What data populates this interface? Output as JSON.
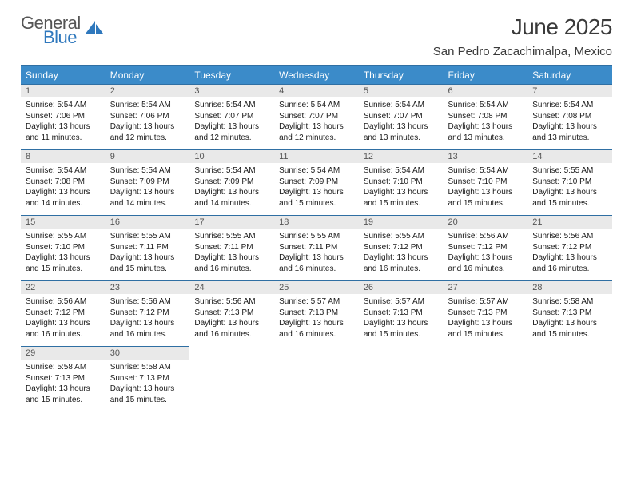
{
  "brand": {
    "part1": "General",
    "part2": "Blue"
  },
  "title": "June 2025",
  "location": "San Pedro Zacachimalpa, Mexico",
  "colors": {
    "header_bg": "#3b8bc9",
    "header_border": "#2f6fa3",
    "daynum_bg": "#e9e9e9",
    "brand_blue": "#2f78bd",
    "text": "#1a1a1a"
  },
  "weekdays": [
    "Sunday",
    "Monday",
    "Tuesday",
    "Wednesday",
    "Thursday",
    "Friday",
    "Saturday"
  ],
  "weeks": [
    [
      {
        "n": "1",
        "sr": "Sunrise: 5:54 AM",
        "ss": "Sunset: 7:06 PM",
        "d1": "Daylight: 13 hours",
        "d2": "and 11 minutes."
      },
      {
        "n": "2",
        "sr": "Sunrise: 5:54 AM",
        "ss": "Sunset: 7:06 PM",
        "d1": "Daylight: 13 hours",
        "d2": "and 12 minutes."
      },
      {
        "n": "3",
        "sr": "Sunrise: 5:54 AM",
        "ss": "Sunset: 7:07 PM",
        "d1": "Daylight: 13 hours",
        "d2": "and 12 minutes."
      },
      {
        "n": "4",
        "sr": "Sunrise: 5:54 AM",
        "ss": "Sunset: 7:07 PM",
        "d1": "Daylight: 13 hours",
        "d2": "and 12 minutes."
      },
      {
        "n": "5",
        "sr": "Sunrise: 5:54 AM",
        "ss": "Sunset: 7:07 PM",
        "d1": "Daylight: 13 hours",
        "d2": "and 13 minutes."
      },
      {
        "n": "6",
        "sr": "Sunrise: 5:54 AM",
        "ss": "Sunset: 7:08 PM",
        "d1": "Daylight: 13 hours",
        "d2": "and 13 minutes."
      },
      {
        "n": "7",
        "sr": "Sunrise: 5:54 AM",
        "ss": "Sunset: 7:08 PM",
        "d1": "Daylight: 13 hours",
        "d2": "and 13 minutes."
      }
    ],
    [
      {
        "n": "8",
        "sr": "Sunrise: 5:54 AM",
        "ss": "Sunset: 7:08 PM",
        "d1": "Daylight: 13 hours",
        "d2": "and 14 minutes."
      },
      {
        "n": "9",
        "sr": "Sunrise: 5:54 AM",
        "ss": "Sunset: 7:09 PM",
        "d1": "Daylight: 13 hours",
        "d2": "and 14 minutes."
      },
      {
        "n": "10",
        "sr": "Sunrise: 5:54 AM",
        "ss": "Sunset: 7:09 PM",
        "d1": "Daylight: 13 hours",
        "d2": "and 14 minutes."
      },
      {
        "n": "11",
        "sr": "Sunrise: 5:54 AM",
        "ss": "Sunset: 7:09 PM",
        "d1": "Daylight: 13 hours",
        "d2": "and 15 minutes."
      },
      {
        "n": "12",
        "sr": "Sunrise: 5:54 AM",
        "ss": "Sunset: 7:10 PM",
        "d1": "Daylight: 13 hours",
        "d2": "and 15 minutes."
      },
      {
        "n": "13",
        "sr": "Sunrise: 5:54 AM",
        "ss": "Sunset: 7:10 PM",
        "d1": "Daylight: 13 hours",
        "d2": "and 15 minutes."
      },
      {
        "n": "14",
        "sr": "Sunrise: 5:55 AM",
        "ss": "Sunset: 7:10 PM",
        "d1": "Daylight: 13 hours",
        "d2": "and 15 minutes."
      }
    ],
    [
      {
        "n": "15",
        "sr": "Sunrise: 5:55 AM",
        "ss": "Sunset: 7:10 PM",
        "d1": "Daylight: 13 hours",
        "d2": "and 15 minutes."
      },
      {
        "n": "16",
        "sr": "Sunrise: 5:55 AM",
        "ss": "Sunset: 7:11 PM",
        "d1": "Daylight: 13 hours",
        "d2": "and 15 minutes."
      },
      {
        "n": "17",
        "sr": "Sunrise: 5:55 AM",
        "ss": "Sunset: 7:11 PM",
        "d1": "Daylight: 13 hours",
        "d2": "and 16 minutes."
      },
      {
        "n": "18",
        "sr": "Sunrise: 5:55 AM",
        "ss": "Sunset: 7:11 PM",
        "d1": "Daylight: 13 hours",
        "d2": "and 16 minutes."
      },
      {
        "n": "19",
        "sr": "Sunrise: 5:55 AM",
        "ss": "Sunset: 7:12 PM",
        "d1": "Daylight: 13 hours",
        "d2": "and 16 minutes."
      },
      {
        "n": "20",
        "sr": "Sunrise: 5:56 AM",
        "ss": "Sunset: 7:12 PM",
        "d1": "Daylight: 13 hours",
        "d2": "and 16 minutes."
      },
      {
        "n": "21",
        "sr": "Sunrise: 5:56 AM",
        "ss": "Sunset: 7:12 PM",
        "d1": "Daylight: 13 hours",
        "d2": "and 16 minutes."
      }
    ],
    [
      {
        "n": "22",
        "sr": "Sunrise: 5:56 AM",
        "ss": "Sunset: 7:12 PM",
        "d1": "Daylight: 13 hours",
        "d2": "and 16 minutes."
      },
      {
        "n": "23",
        "sr": "Sunrise: 5:56 AM",
        "ss": "Sunset: 7:12 PM",
        "d1": "Daylight: 13 hours",
        "d2": "and 16 minutes."
      },
      {
        "n": "24",
        "sr": "Sunrise: 5:56 AM",
        "ss": "Sunset: 7:13 PM",
        "d1": "Daylight: 13 hours",
        "d2": "and 16 minutes."
      },
      {
        "n": "25",
        "sr": "Sunrise: 5:57 AM",
        "ss": "Sunset: 7:13 PM",
        "d1": "Daylight: 13 hours",
        "d2": "and 16 minutes."
      },
      {
        "n": "26",
        "sr": "Sunrise: 5:57 AM",
        "ss": "Sunset: 7:13 PM",
        "d1": "Daylight: 13 hours",
        "d2": "and 15 minutes."
      },
      {
        "n": "27",
        "sr": "Sunrise: 5:57 AM",
        "ss": "Sunset: 7:13 PM",
        "d1": "Daylight: 13 hours",
        "d2": "and 15 minutes."
      },
      {
        "n": "28",
        "sr": "Sunrise: 5:58 AM",
        "ss": "Sunset: 7:13 PM",
        "d1": "Daylight: 13 hours",
        "d2": "and 15 minutes."
      }
    ],
    [
      {
        "n": "29",
        "sr": "Sunrise: 5:58 AM",
        "ss": "Sunset: 7:13 PM",
        "d1": "Daylight: 13 hours",
        "d2": "and 15 minutes."
      },
      {
        "n": "30",
        "sr": "Sunrise: 5:58 AM",
        "ss": "Sunset: 7:13 PM",
        "d1": "Daylight: 13 hours",
        "d2": "and 15 minutes."
      },
      null,
      null,
      null,
      null,
      null
    ]
  ]
}
